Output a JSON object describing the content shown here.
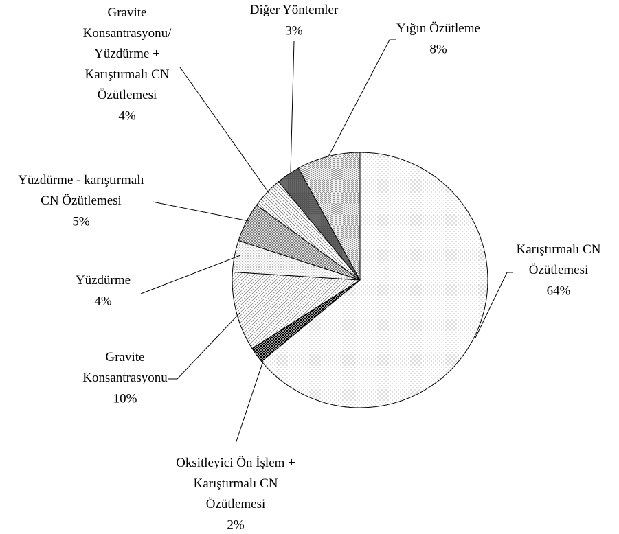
{
  "chart_data": {
    "type": "pie",
    "categories": [
      "Karıştırmalı  CN\nÖzütlemesi",
      "Oksitleyici Ön İşlem +\nKarıştırmalı  CN\nÖzütlemesi",
      "Gravite\nKonsantrasyonu",
      "Yüzdürme",
      "Yüzdürme - karıştırmalı\nCN Özütlemesi",
      "Gravite\nKonsantrasyonu/\nYüzdürme +\nKarıştırmalı CN\nÖzütlemesi",
      "Diğer Yöntemler",
      "Yığın Özütleme"
    ],
    "values": [
      64,
      2,
      10,
      4,
      5,
      4,
      3,
      8
    ],
    "value_labels": [
      "64%",
      "2%",
      "10%",
      "4%",
      "5%",
      "4%",
      "3%",
      "8%"
    ]
  }
}
